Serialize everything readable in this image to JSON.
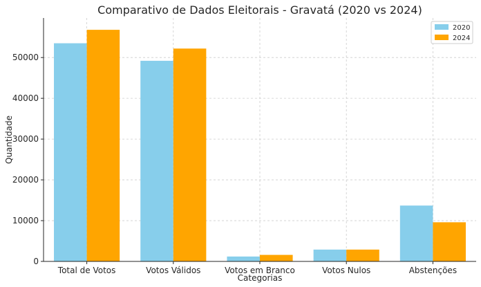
{
  "chart_data": {
    "type": "bar",
    "title": "Comparativo de Dados Eleitorais - Gravatá (2020 vs 2024)",
    "xlabel": "Categorias",
    "ylabel": "Quantidade",
    "categories": [
      "Total de Votos",
      "Votos Válidos",
      "Votos em Branco",
      "Votos Nulos",
      "Abstenções"
    ],
    "series": [
      {
        "name": "2020",
        "color": "#87CEEB",
        "values": [
          53500,
          49200,
          1200,
          2900,
          13700
        ]
      },
      {
        "name": "2024",
        "color": "#FFA500",
        "values": [
          56800,
          52200,
          1600,
          2900,
          9600
        ]
      }
    ],
    "ylim": [
      0,
      59700
    ],
    "yticks": [
      0,
      10000,
      20000,
      30000,
      40000,
      50000
    ],
    "ytick_labels": [
      "0",
      "10000",
      "20000",
      "30000",
      "40000",
      "50000"
    ],
    "grid": true,
    "legend_position": "top-right"
  }
}
